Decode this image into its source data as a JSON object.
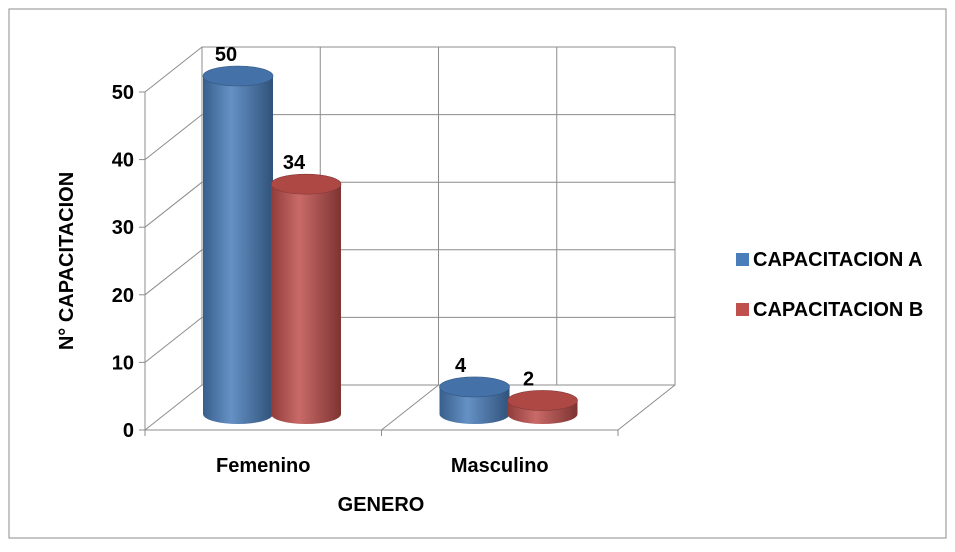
{
  "chart_data": {
    "type": "bar",
    "style": "3d-cylinder",
    "categories": [
      "Femenino",
      "Masculino"
    ],
    "series": [
      {
        "name": "CAPACITACION A",
        "values": [
          50,
          4
        ],
        "color": "#4A7EBB"
      },
      {
        "name": "CAPACITACION B",
        "values": [
          34,
          2
        ],
        "color": "#C0504D"
      }
    ],
    "xlabel": "GENERO",
    "ylabel": "N° CAPACITACION",
    "ylim": [
      0,
      50
    ],
    "yticks": [
      0,
      10,
      20,
      30,
      40,
      50
    ],
    "grid": true,
    "legend": "right",
    "data_labels": true
  }
}
